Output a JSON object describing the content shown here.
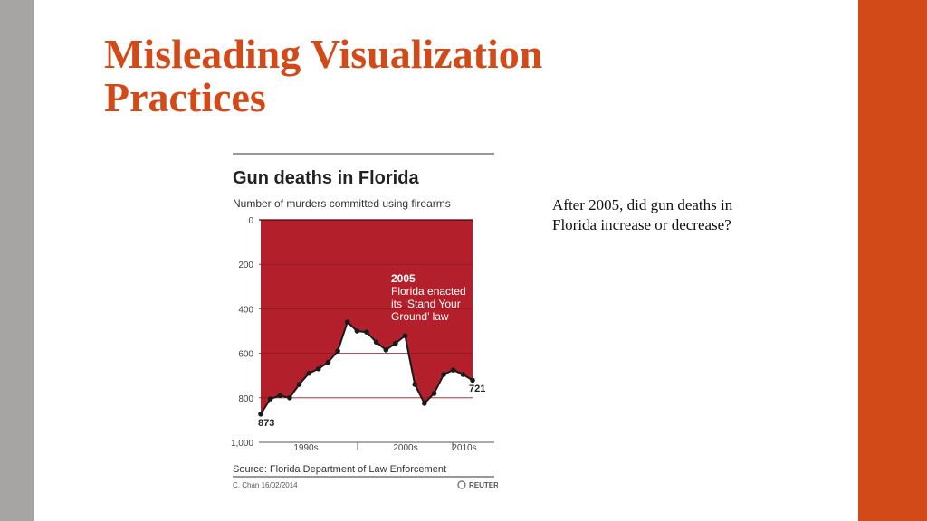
{
  "slide": {
    "title_line1": "Misleading Visualization",
    "title_line2": "Practices",
    "question": "After 2005, did gun deaths in Florida increase or decrease?",
    "colors": {
      "accent": "#d24a18",
      "left_bar": "#a7a4a4"
    }
  },
  "chart_data": {
    "type": "area",
    "title": "Gun deaths in Florida",
    "subtitle": "Number of murders committed using firearms",
    "x": [
      1990,
      1991,
      1992,
      1993,
      1994,
      1995,
      1996,
      1997,
      1998,
      1999,
      2000,
      2001,
      2002,
      2003,
      2004,
      2005,
      2006,
      2007,
      2008,
      2009,
      2010,
      2011,
      2012
    ],
    "values": [
      873,
      805,
      790,
      800,
      740,
      690,
      670,
      640,
      590,
      460,
      500,
      505,
      550,
      585,
      555,
      521,
      740,
      825,
      780,
      695,
      675,
      695,
      721
    ],
    "y_inverted": true,
    "ylim": [
      0,
      1000
    ],
    "yticks": [
      "0",
      "200",
      "400",
      "600",
      "800",
      "1,000"
    ],
    "ytick_values": [
      0,
      200,
      400,
      600,
      800,
      1000
    ],
    "xtick_labels": [
      "1990s",
      "2000s",
      "2010s"
    ],
    "annotation": {
      "year": "2005",
      "lines": [
        "Florida enacted",
        "its ‘Stand Your",
        "Ground’ law"
      ]
    },
    "first_label": "873",
    "last_label": "721",
    "source": "Source: Florida Department of Law Enforcement",
    "credit": "C. Chan 16/02/2014",
    "logo_text": "REUTERS",
    "grid": true,
    "colors": {
      "fill": "#b3202c",
      "line": "#1a1a1a"
    }
  }
}
